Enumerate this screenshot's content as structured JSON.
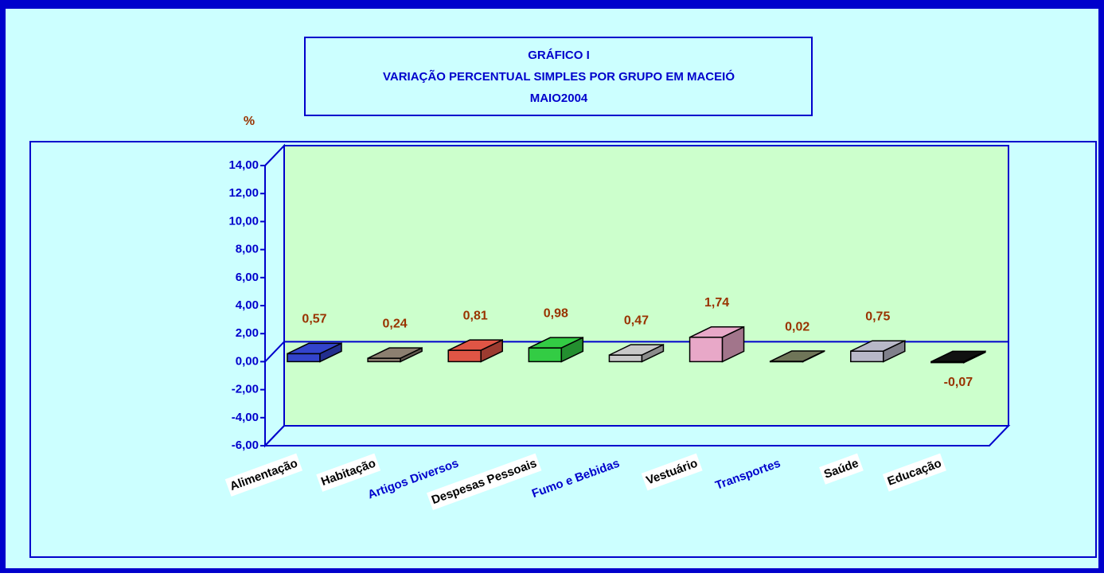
{
  "chart_data": {
    "type": "bar",
    "title": [
      "GRÁFICO I",
      "VARIAÇÃO PERCENTUAL SIMPLES POR GRUPO EM MACEIÓ",
      "MAIO2004"
    ],
    "ylabel": "%",
    "categories": [
      "Alimentação",
      "Habitação",
      "Artigos Diversos",
      "Despesas Pessoais",
      "Fumo e Bebidas",
      "Vestuário",
      "Transportes",
      "Saúde",
      "Educação"
    ],
    "values": [
      0.57,
      0.24,
      0.81,
      0.98,
      0.47,
      1.74,
      0.02,
      0.75,
      -0.07
    ],
    "value_labels": [
      "0,57",
      "0,24",
      "0,81",
      "0,98",
      "0,47",
      "1,74",
      "0,02",
      "0,75",
      "-0,07"
    ],
    "colors": [
      "#3344cc",
      "#8c7f70",
      "#e05545",
      "#33cc44",
      "#c8c8c8",
      "#e8a8c8",
      "#6f7558",
      "#b8b8c8",
      "#111111"
    ],
    "ylim": [
      -6,
      14
    ],
    "yticks": [
      {
        "value": -6,
        "label": "-6,00"
      },
      {
        "value": -4,
        "label": "-4,00"
      },
      {
        "value": -2,
        "label": "-2,00"
      },
      {
        "value": 0,
        "label": "0,00"
      },
      {
        "value": 2,
        "label": "2,00"
      },
      {
        "value": 4,
        "label": "4,00"
      },
      {
        "value": 6,
        "label": "6,00"
      },
      {
        "value": 8,
        "label": "8,00"
      },
      {
        "value": 10,
        "label": "10,00"
      },
      {
        "value": 12,
        "label": "12,00"
      },
      {
        "value": 14,
        "label": "14,00"
      }
    ]
  }
}
